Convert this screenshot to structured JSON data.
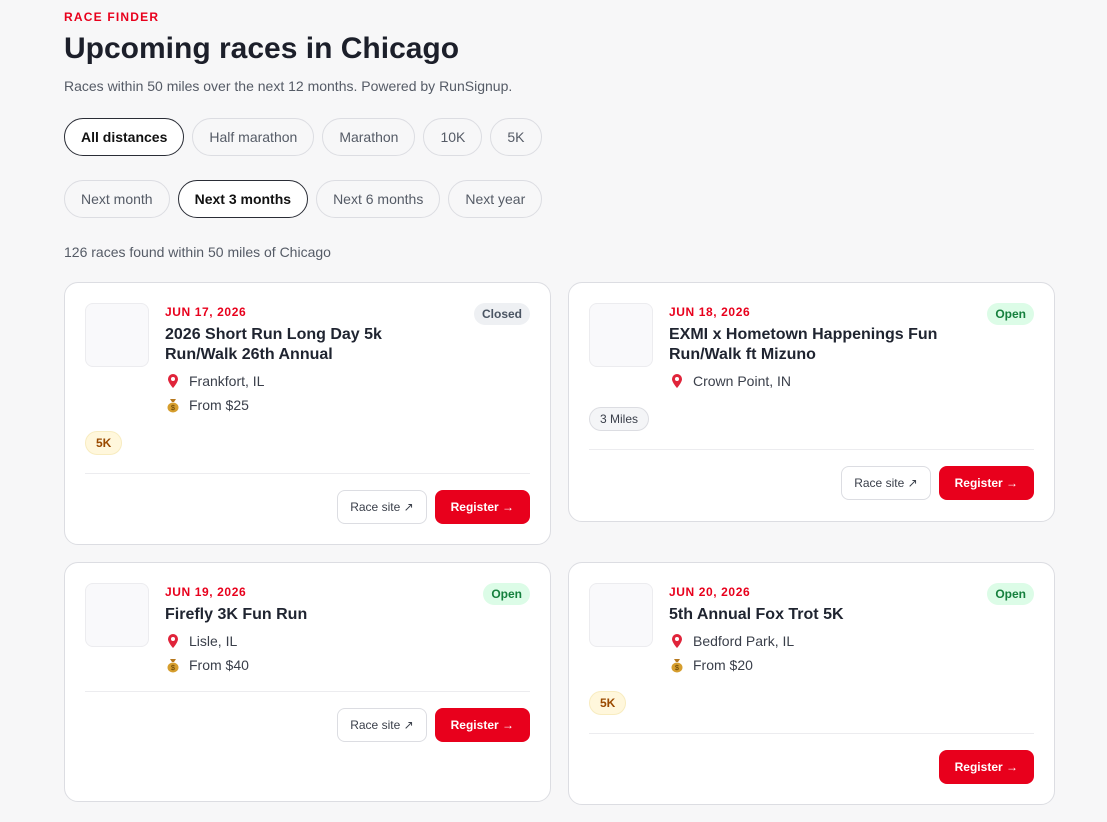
{
  "header": {
    "eyebrow": "RACE FINDER",
    "title": "Upcoming races in Chicago",
    "subtitle": "Races within 50 miles over the next 12 months. Powered by RunSignup."
  },
  "distance_filters": {
    "options": [
      "All distances",
      "Half marathon",
      "Marathon",
      "10K",
      "5K"
    ],
    "selected": 0
  },
  "time_filters": {
    "options": [
      "Next month",
      "Next 3 months",
      "Next 6 months",
      "Next year"
    ],
    "selected": 1
  },
  "results_summary": "126 races found within 50 miles of Chicago",
  "races": [
    {
      "date": "JUN 17, 2026",
      "name": "2026 Short Run Long Day 5k Run/Walk 26th Annual",
      "status": "Closed",
      "status_color": "#4b5563",
      "status_bg": "#eef0f3",
      "location": "Frankfort, IL",
      "price": "From $25",
      "tag": "5K",
      "race_site": "Race site ↗",
      "register": "Register →"
    },
    {
      "date": "JUN 18, 2026",
      "name": "EXMI x Hometown Happenings Fun Run/Walk ft Mizuno",
      "status": "Open",
      "status_color": "#15803d",
      "status_bg": "#dcfce7",
      "location": "Crown Point, IN",
      "tag": "3 Miles",
      "race_site": "Race site ↗",
      "register": "Register →"
    },
    {
      "date": "JUN 19, 2026",
      "name": "Firefly 3K Fun Run",
      "status": "Open",
      "status_color": "#15803d",
      "status_bg": "#dcfce7",
      "location": "Lisle, IL",
      "price": "From $40",
      "race_site": "Race site ↗",
      "register": "Register →"
    },
    {
      "date": "JUN 20, 2026",
      "name": "5th Annual Fox Trot 5K",
      "status": "Open",
      "status_color": "#15803d",
      "status_bg": "#dcfce7",
      "location": "Bedford Park, IL",
      "price": "From $20",
      "tag": "5K",
      "register": "Register →"
    }
  ]
}
